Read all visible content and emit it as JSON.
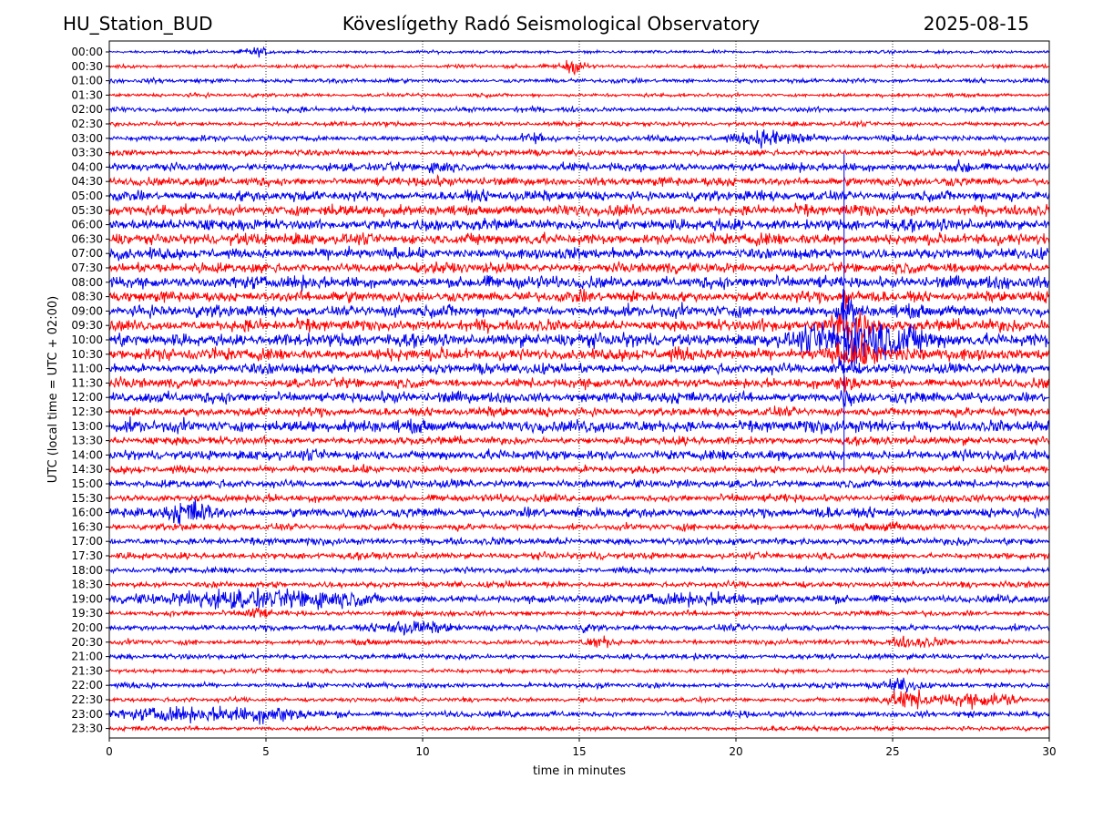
{
  "header": {
    "left": "HU_Station_BUD",
    "center": "Köveslígethy Radó Seismological Observatory",
    "right": "2025-08-15"
  },
  "chart_data": {
    "type": "line",
    "title": "Köveslígethy Radó Seismological Observatory",
    "xlabel": "time in minutes",
    "ylabel": "UTC (local time = UTC + 02:00)",
    "xlim": [
      0,
      30
    ],
    "xticks": [
      0,
      5,
      10,
      15,
      20,
      25,
      30
    ],
    "grid": "vertical dotted at each x tick",
    "rows": [
      "00:00",
      "00:30",
      "01:00",
      "01:30",
      "02:00",
      "02:30",
      "03:00",
      "03:30",
      "04:00",
      "04:30",
      "05:00",
      "05:30",
      "06:00",
      "06:30",
      "07:00",
      "07:30",
      "08:00",
      "08:30",
      "09:00",
      "09:30",
      "10:00",
      "10:30",
      "11:00",
      "11:30",
      "12:00",
      "12:30",
      "13:00",
      "13:30",
      "14:00",
      "14:30",
      "15:00",
      "15:30",
      "16:00",
      "16:30",
      "17:00",
      "17:30",
      "18:00",
      "18:30",
      "19:00",
      "19:30",
      "20:00",
      "20:30",
      "21:00",
      "21:30",
      "22:00",
      "22:30",
      "23:00",
      "23:30"
    ],
    "colors": {
      "even_rows": "#0000ee",
      "odd_rows": "#ff0000"
    },
    "base_amplitude": [
      0.2,
      0.25,
      0.3,
      0.25,
      0.35,
      0.3,
      0.4,
      0.4,
      0.55,
      0.6,
      0.7,
      0.75,
      0.8,
      0.8,
      0.75,
      0.7,
      0.85,
      0.75,
      0.8,
      0.8,
      0.9,
      0.85,
      0.7,
      0.65,
      0.75,
      0.6,
      0.85,
      0.55,
      0.7,
      0.5,
      0.55,
      0.5,
      0.65,
      0.45,
      0.5,
      0.45,
      0.4,
      0.4,
      0.55,
      0.35,
      0.4,
      0.35,
      0.35,
      0.3,
      0.35,
      0.3,
      0.4,
      0.3
    ],
    "events": [
      {
        "row": "00:00",
        "time_min": 4.7,
        "amplitude": 0.5,
        "width_min": 0.3
      },
      {
        "row": "00:30",
        "time_min": 14.8,
        "amplitude": 0.8,
        "width_min": 0.3
      },
      {
        "row": "03:00",
        "time_min": 21.0,
        "amplitude": 1.0,
        "width_min": 0.6
      },
      {
        "row": "03:00",
        "time_min": 13.6,
        "amplitude": 0.6,
        "width_min": 0.4
      },
      {
        "row": "03:00",
        "time_min": 22.0,
        "amplitude": 0.6,
        "width_min": 0.3
      },
      {
        "row": "04:00",
        "time_min": 27.3,
        "amplitude": 0.9,
        "width_min": 0.2
      },
      {
        "row": "04:00",
        "time_min": 10.5,
        "amplitude": 0.6,
        "width_min": 0.3
      },
      {
        "row": "08:30",
        "time_min": 23.5,
        "amplitude": 1.6,
        "width_min": 0.1
      },
      {
        "row": "09:00",
        "time_min": 23.5,
        "amplitude": 2.6,
        "width_min": 0.2
      },
      {
        "row": "09:30",
        "time_min": 23.7,
        "amplitude": 2.0,
        "width_min": 0.5
      },
      {
        "row": "10:00",
        "time_min": 24.2,
        "amplitude": 2.6,
        "width_min": 1.3
      },
      {
        "row": "10:30",
        "time_min": 23.9,
        "amplitude": 1.2,
        "width_min": 0.7
      },
      {
        "row": "11:00",
        "time_min": 23.5,
        "amplitude": 1.8,
        "width_min": 0.2
      },
      {
        "row": "11:30",
        "time_min": 23.5,
        "amplitude": 1.2,
        "width_min": 0.2
      },
      {
        "row": "12:00",
        "time_min": 23.5,
        "amplitude": 1.0,
        "width_min": 0.15
      },
      {
        "row": "16:00",
        "time_min": 2.6,
        "amplitude": 1.4,
        "width_min": 0.5
      },
      {
        "row": "16:30",
        "time_min": 25.0,
        "amplitude": 0.5,
        "width_min": 0.2
      },
      {
        "row": "19:00",
        "time_min": 3.8,
        "amplitude": 1.1,
        "width_min": 1.3
      },
      {
        "row": "19:00",
        "time_min": 6.8,
        "amplitude": 0.9,
        "width_min": 1.0
      },
      {
        "row": "19:00",
        "time_min": 19.0,
        "amplitude": 0.6,
        "width_min": 1.2
      },
      {
        "row": "19:30",
        "time_min": 4.7,
        "amplitude": 1.0,
        "width_min": 0.2
      },
      {
        "row": "20:00",
        "time_min": 9.6,
        "amplitude": 0.9,
        "width_min": 0.7
      },
      {
        "row": "20:00",
        "time_min": 15.3,
        "amplitude": 0.5,
        "width_min": 0.2
      },
      {
        "row": "20:30",
        "time_min": 15.6,
        "amplitude": 0.6,
        "width_min": 0.3
      },
      {
        "row": "20:30",
        "time_min": 25.8,
        "amplitude": 0.7,
        "width_min": 0.6
      },
      {
        "row": "22:00",
        "time_min": 25.3,
        "amplitude": 0.7,
        "width_min": 0.5
      },
      {
        "row": "22:30",
        "time_min": 25.5,
        "amplitude": 1.2,
        "width_min": 0.5
      },
      {
        "row": "22:30",
        "time_min": 27.3,
        "amplitude": 0.9,
        "width_min": 0.5
      },
      {
        "row": "22:30",
        "time_min": 28.5,
        "amplitude": 0.8,
        "width_min": 0.4
      },
      {
        "row": "23:00",
        "time_min": 2.0,
        "amplitude": 0.8,
        "width_min": 1.2
      },
      {
        "row": "23:00",
        "time_min": 5.0,
        "amplitude": 0.9,
        "width_min": 1.0
      }
    ]
  }
}
